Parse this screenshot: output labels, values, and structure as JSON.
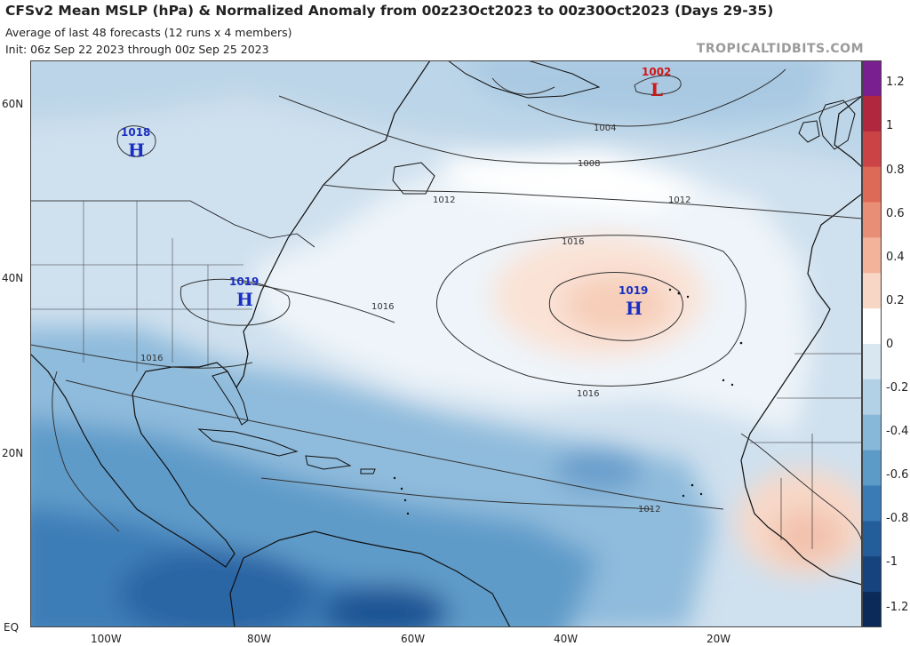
{
  "header": {
    "title": "CFSv2 Mean MSLP (hPa) & Normalized Anomaly from 00z23Oct2023 to 00z30Oct2023 (Days 29-35)",
    "subtitle1": "Average of last 48 forecasts (12 runs x 4 members)",
    "subtitle2": "Init: 06z Sep 22 2023 through 00z Sep 25 2023",
    "credit": "TROPICALTIDBITS.COM"
  },
  "axes": {
    "lat_labels": [
      "60N",
      "40N",
      "20N",
      "EQ"
    ],
    "lon_labels": [
      "100W",
      "80W",
      "60W",
      "40W",
      "20W"
    ]
  },
  "colorbar": {
    "labels": [
      "1.2",
      "1",
      "0.8",
      "0.6",
      "0.4",
      "0.2",
      "0",
      "-0.2",
      "-0.4",
      "-0.6",
      "-0.8",
      "-1",
      "-1.2"
    ],
    "colors": [
      "#7a1f8f",
      "#b0273e",
      "#cc4345",
      "#dd6a56",
      "#e98e76",
      "#f2b39a",
      "#f8d6c6",
      "#ffffff",
      "#d9e7f1",
      "#b3d1e6",
      "#87b7d9",
      "#5c9ac8",
      "#3a7bb5",
      "#245e9a",
      "#16437d",
      "#0b2a5a"
    ]
  },
  "pressure_centers": [
    {
      "type": "H",
      "value": "1018",
      "color": "#1a2fc0"
    },
    {
      "type": "H",
      "value": "1019",
      "color": "#1a2fc0"
    },
    {
      "type": "H",
      "value": "1019",
      "color": "#1a2fc0"
    },
    {
      "type": "L",
      "value": "1002",
      "color": "#d01818"
    }
  ],
  "isobar_labels": [
    "1004",
    "1008",
    "1012",
    "1012",
    "1016",
    "1016",
    "1016",
    "1016",
    "1012"
  ]
}
